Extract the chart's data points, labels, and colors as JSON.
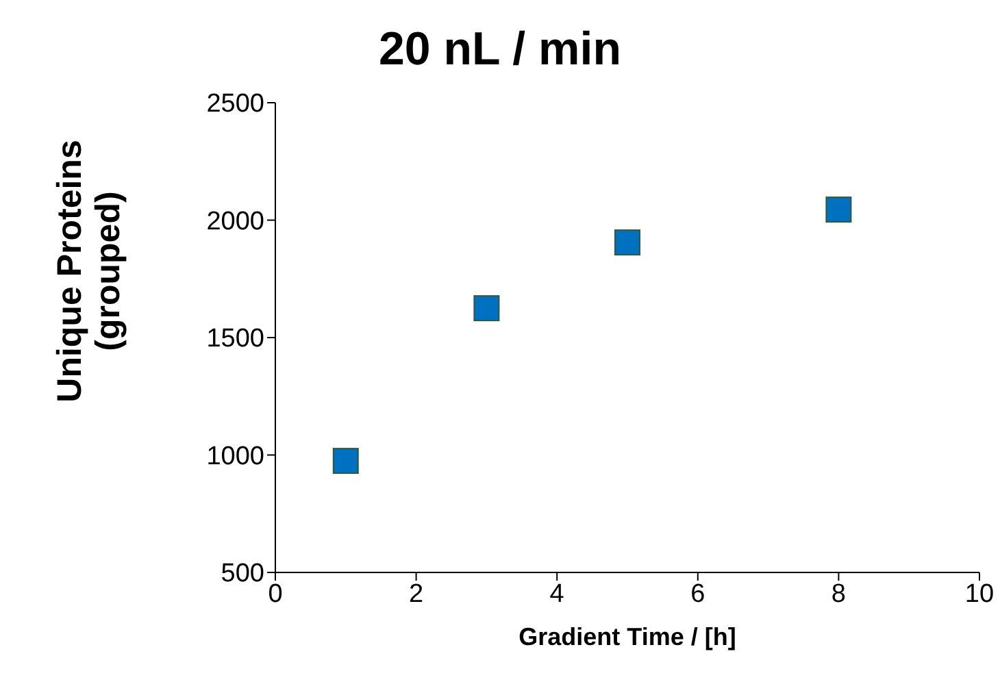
{
  "chart_data": {
    "type": "scatter",
    "title": "20 nL / min",
    "xlabel": "Gradient Time / [h]",
    "ylabel": "Unique Proteins (grouped)",
    "x": [
      1,
      3,
      5,
      8
    ],
    "series": [
      {
        "color": "#0070c0",
        "values": [
          975,
          1625,
          1905,
          2045
        ]
      }
    ],
    "xlim": [
      0,
      10
    ],
    "xticks": [
      0,
      2,
      4,
      6,
      8,
      10
    ],
    "ylim": [
      500,
      2500
    ],
    "yticks": [
      500,
      1000,
      1500,
      2000,
      2500
    ],
    "grid": false,
    "legend": false,
    "marker": "square"
  }
}
